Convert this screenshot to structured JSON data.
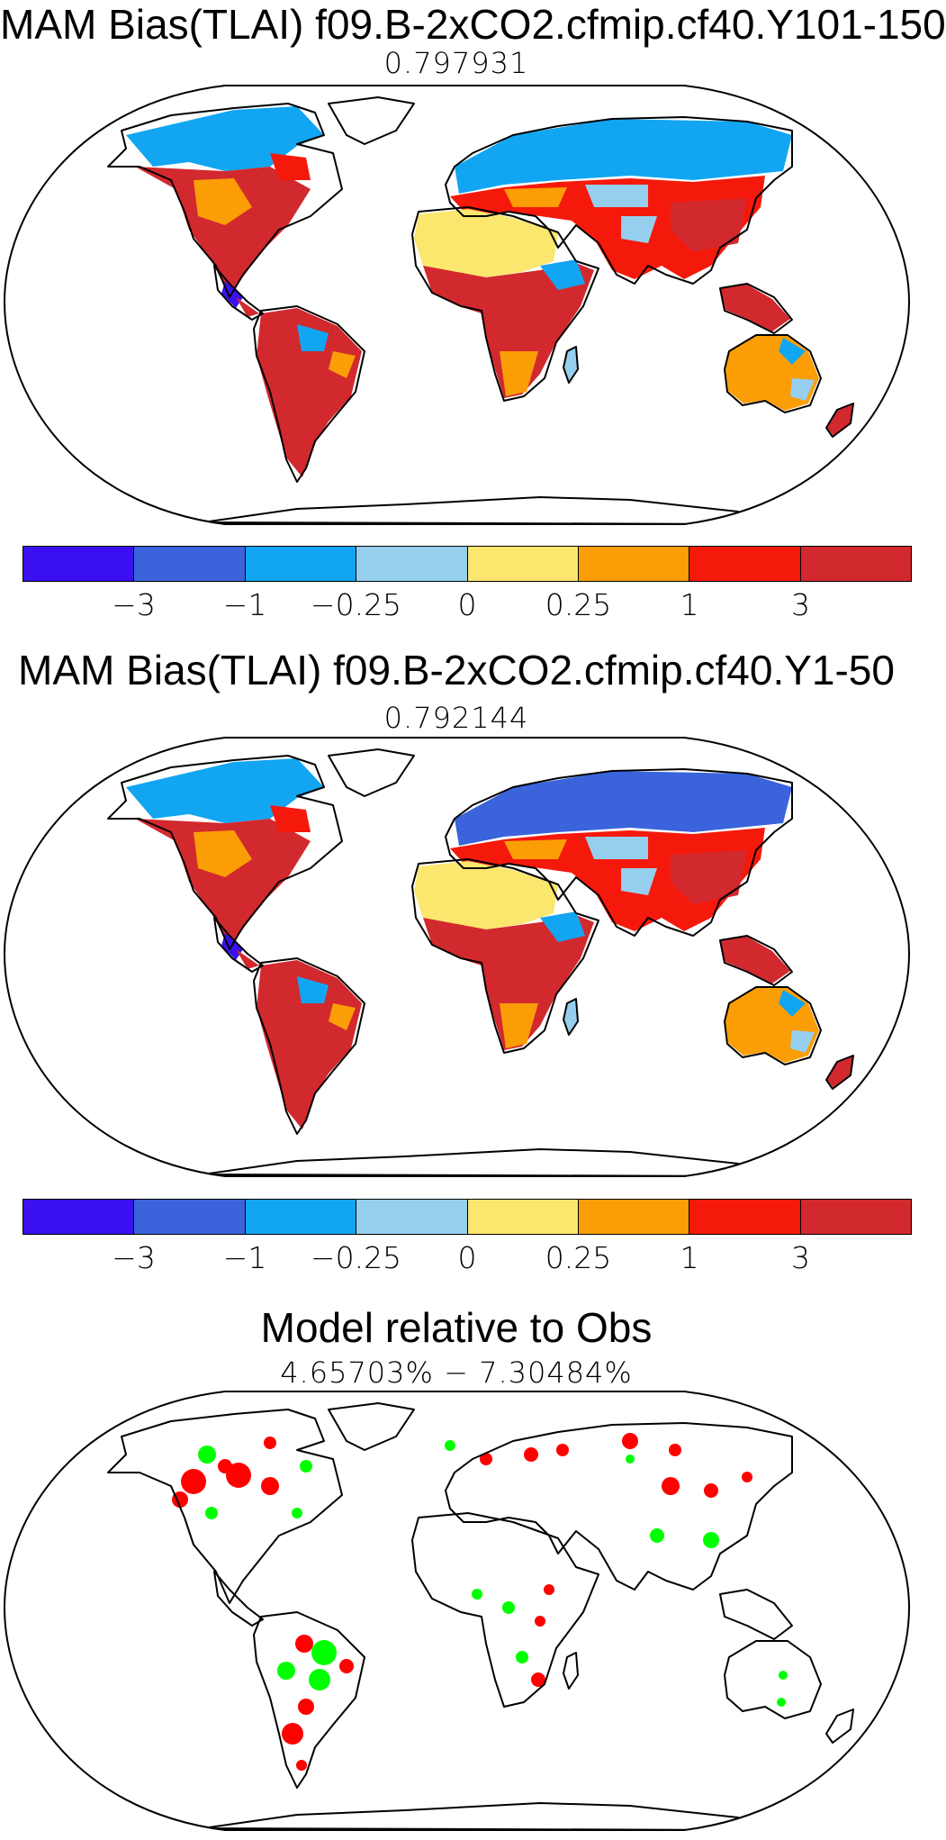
{
  "colorbar": {
    "colors": [
      "#3a10f0",
      "#3a63dc",
      "#12a6f2",
      "#96cfee",
      "#fbe66e",
      "#fb9e06",
      "#f5190c",
      "#d2292e"
    ],
    "tick_labels": [
      "−3",
      "−1",
      "−0.25",
      "0",
      "0.25",
      "1",
      "3"
    ]
  },
  "panels": [
    {
      "title": "MAM Bias(TLAI) f09.B-2xCO2.cfmip.cf40.Y101-150",
      "subtitle": "0.797931",
      "type": "bias-map"
    },
    {
      "title": "MAM Bias(TLAI) f09.B-2xCO2.cfmip.cf40.Y1-50",
      "subtitle": "0.792144",
      "type": "bias-map"
    },
    {
      "title": "Model relative to Obs",
      "subtitle": "4.65703% − 7.30484%",
      "type": "relative-map",
      "colors": {
        "worse": "#ff0000",
        "better": "#00ff00"
      }
    }
  ]
}
